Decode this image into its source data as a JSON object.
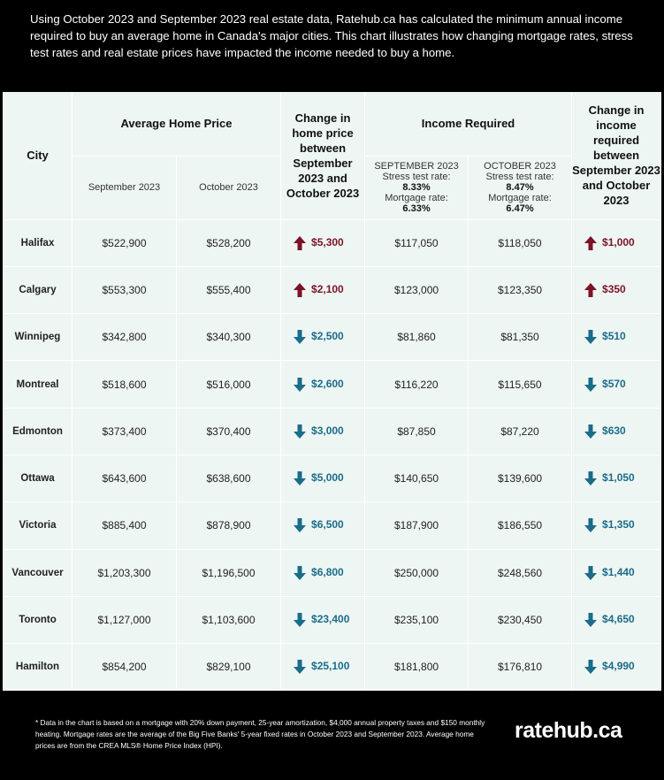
{
  "intro_text": "Using October 2023 and September 2023 real estate data, Ratehub.ca has calculated the minimum annual income required to buy an average home in Canada's major cities. This chart illustrates how changing mortgage rates, stress test rates and real estate prices have impacted the income needed to buy a home.",
  "header": {
    "city": "City",
    "avg_price": "Average Home Price",
    "price_change": "Change in home price between September 2023 and October 2023",
    "income_required": "Income Required",
    "income_change": "Change in income required between September 2023 and October 2023",
    "sep_label": "September 2023",
    "oct_label": "October 2023",
    "sep_inc": {
      "month": "SEPTEMBER 2023",
      "stress_label": "Stress test rate:",
      "stress_value": "8.33%",
      "mortgage_label": "Mortgage rate:",
      "mortgage_value": "6.33%"
    },
    "oct_inc": {
      "month": "OCTOBER 2023",
      "stress_label": "Stress test rate:",
      "stress_value": "8.47%",
      "mortgage_label": "Mortgage rate:",
      "mortgage_value": "6.47%"
    }
  },
  "colors": {
    "up": "#7b1326",
    "down": "#1a6c8a",
    "table_bg": "#eef6f4"
  },
  "chart_data": {
    "type": "table",
    "columns": [
      "City",
      "Average Home Price September 2023",
      "Average Home Price October 2023",
      "Change in home price",
      "Income Required September 2023",
      "Income Required October 2023",
      "Change in income required"
    ],
    "rows": [
      {
        "city": "Halifax",
        "price_sep": "$522,900",
        "price_oct": "$528,200",
        "price_dir": "up",
        "price_change": "$5,300",
        "inc_sep": "$117,050",
        "inc_oct": "$118,050",
        "inc_dir": "up",
        "inc_change": "$1,000"
      },
      {
        "city": "Calgary",
        "price_sep": "$553,300",
        "price_oct": "$555,400",
        "price_dir": "up",
        "price_change": "$2,100",
        "inc_sep": "$123,000",
        "inc_oct": "$123,350",
        "inc_dir": "up",
        "inc_change": "$350"
      },
      {
        "city": "Winnipeg",
        "price_sep": "$342,800",
        "price_oct": "$340,300",
        "price_dir": "down",
        "price_change": "$2,500",
        "inc_sep": "$81,860",
        "inc_oct": "$81,350",
        "inc_dir": "down",
        "inc_change": "$510"
      },
      {
        "city": "Montreal",
        "price_sep": "$518,600",
        "price_oct": "$516,000",
        "price_dir": "down",
        "price_change": "$2,600",
        "inc_sep": "$116,220",
        "inc_oct": "$115,650",
        "inc_dir": "down",
        "inc_change": "$570"
      },
      {
        "city": "Edmonton",
        "price_sep": "$373,400",
        "price_oct": "$370,400",
        "price_dir": "down",
        "price_change": "$3,000",
        "inc_sep": "$87,850",
        "inc_oct": "$87,220",
        "inc_dir": "down",
        "inc_change": "$630"
      },
      {
        "city": "Ottawa",
        "price_sep": "$643,600",
        "price_oct": "$638,600",
        "price_dir": "down",
        "price_change": "$5,000",
        "inc_sep": "$140,650",
        "inc_oct": "$139,600",
        "inc_dir": "down",
        "inc_change": "$1,050"
      },
      {
        "city": "Victoria",
        "price_sep": "$885,400",
        "price_oct": "$878,900",
        "price_dir": "down",
        "price_change": "$6,500",
        "inc_sep": "$187,900",
        "inc_oct": "$186,550",
        "inc_dir": "down",
        "inc_change": "$1,350"
      },
      {
        "city": "Vancouver",
        "price_sep": "$1,203,300",
        "price_oct": "$1,196,500",
        "price_dir": "down",
        "price_change": "$6,800",
        "inc_sep": "$250,000",
        "inc_oct": "$248,560",
        "inc_dir": "down",
        "inc_change": "$1,440"
      },
      {
        "city": "Toronto",
        "price_sep": "$1,127,000",
        "price_oct": "$1,103,600",
        "price_dir": "down",
        "price_change": "$23,400",
        "inc_sep": "$235,100",
        "inc_oct": "$230,450",
        "inc_dir": "down",
        "inc_change": "$4,650"
      },
      {
        "city": "Hamilton",
        "price_sep": "$854,200",
        "price_oct": "$829,100",
        "price_dir": "down",
        "price_change": "$25,100",
        "inc_sep": "$181,800",
        "inc_oct": "$176,810",
        "inc_dir": "down",
        "inc_change": "$4,990"
      }
    ]
  },
  "footnote": "* Data in the chart is based on a mortgage with 20% down payment, 25-year amortization, $4,000 annual property taxes and $150 monthly heating. Mortgage rates are the average of the Big Five Banks' 5-year fixed rates in October 2023 and September 2023. Average home prices are from the CREA MLS® Home Price Index (HPI).",
  "logo_text": "ratehub.ca"
}
